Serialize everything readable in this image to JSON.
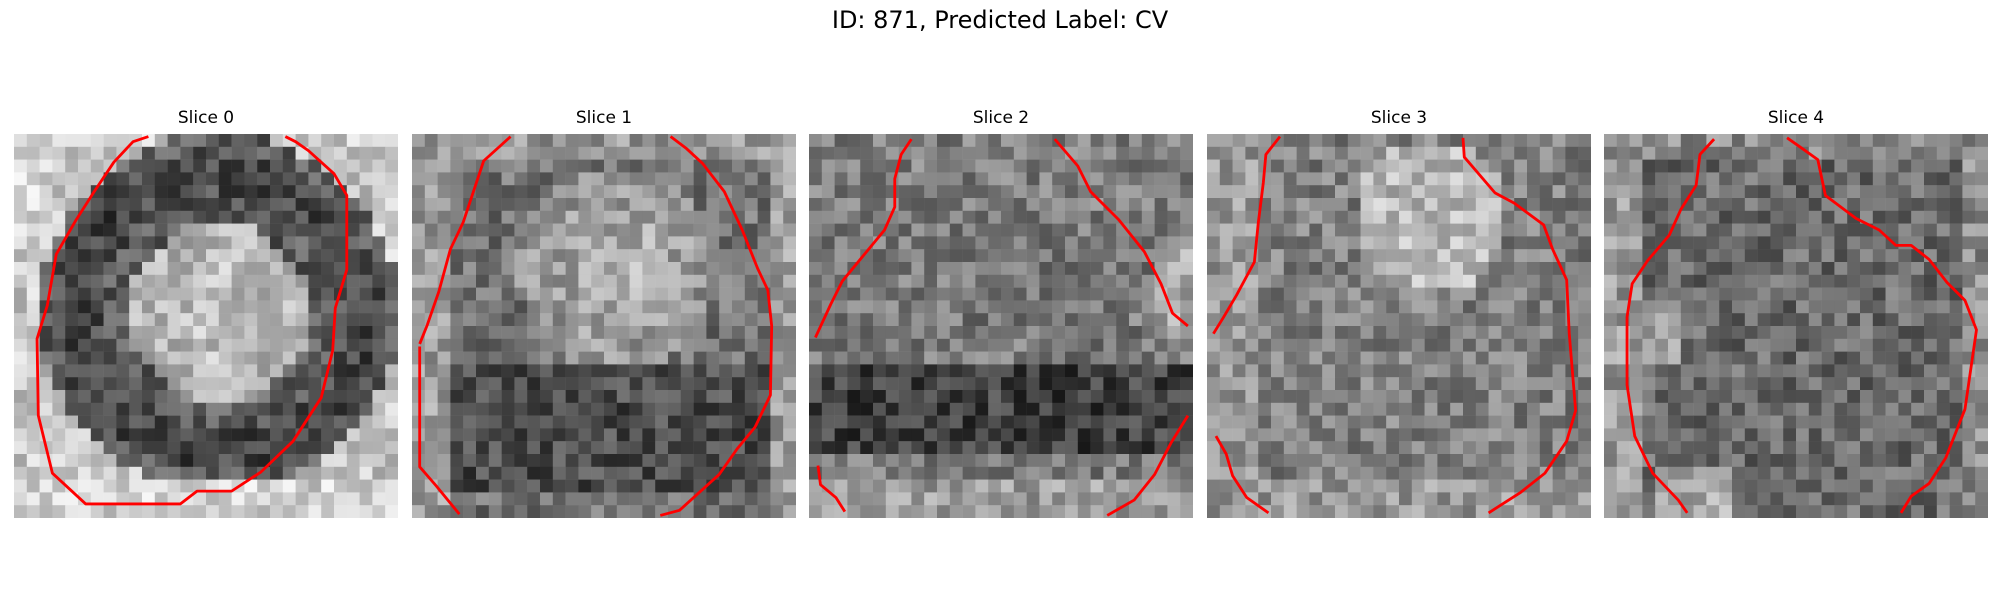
{
  "figure": {
    "title": "ID: 871, Predicted Label: CV"
  },
  "panels": [
    {
      "title": "Slice 0"
    },
    {
      "title": "Slice 1"
    },
    {
      "title": "Slice 2"
    },
    {
      "title": "Slice 3"
    },
    {
      "title": "Slice 4"
    }
  ],
  "colors": {
    "contour": "#ff0000",
    "background": "#ffffff"
  },
  "image_kind": "grayscale pixelated microscopy slices with red contour overlay"
}
